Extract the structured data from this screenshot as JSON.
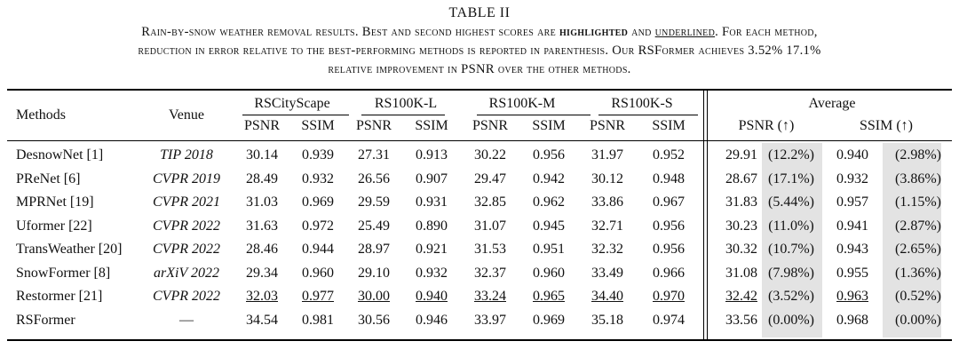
{
  "caption": {
    "title": "TABLE II",
    "line1_a": "Rain-by-snow weather removal results. Best and second highest scores are",
    "line1_highlight": "highlighted",
    "line1_and": "and",
    "line1_underlined": "underlined",
    "line1_b": ". For each method,",
    "line2": "reduction in error relative to the best-performing methods is reported in parenthesis. Our",
    "line2_rsf": "RSFormer",
    "line2_b": "achieves 3.52%  17.1%",
    "line3": "relative improvement in PSNR over the other methods."
  },
  "table": {
    "header": {
      "methods": "Methods",
      "venue": "Venue",
      "groups": [
        "RSCityScape",
        "RS100K-L",
        "RS100K-M",
        "RS100K-S",
        "Average"
      ],
      "psnr": "PSNR",
      "ssim": "SSIM",
      "avg_psnr": "PSNR (↑)",
      "avg_ssim": "SSIM (↑)"
    },
    "rows": [
      {
        "method": "DesnowNet [1]",
        "venue": "TIP 2018",
        "v": [
          "30.14",
          "0.939",
          "27.31",
          "0.913",
          "30.22",
          "0.956",
          "31.97",
          "0.952"
        ],
        "avg_psnr": "29.91",
        "avg_psnr_rel": "(12.2%)",
        "avg_ssim": "0.940",
        "avg_ssim_rel": "(2.98%)"
      },
      {
        "method": "PReNet [6]",
        "venue": "CVPR 2019",
        "v": [
          "28.49",
          "0.932",
          "26.56",
          "0.907",
          "29.47",
          "0.942",
          "30.12",
          "0.948"
        ],
        "avg_psnr": "28.67",
        "avg_psnr_rel": "(17.1%)",
        "avg_ssim": "0.932",
        "avg_ssim_rel": "(3.86%)"
      },
      {
        "method": "MPRNet [19]",
        "venue": "CVPR 2021",
        "v": [
          "31.03",
          "0.969",
          "29.59",
          "0.931",
          "32.85",
          "0.962",
          "33.86",
          "0.967"
        ],
        "avg_psnr": "31.83",
        "avg_psnr_rel": "(5.44%)",
        "avg_ssim": "0.957",
        "avg_ssim_rel": "(1.15%)"
      },
      {
        "method": "Uformer [22]",
        "venue": "CVPR 2022",
        "v": [
          "31.63",
          "0.972",
          "25.49",
          "0.890",
          "31.07",
          "0.945",
          "32.71",
          "0.956"
        ],
        "avg_psnr": "30.23",
        "avg_psnr_rel": "(11.0%)",
        "avg_ssim": "0.941",
        "avg_ssim_rel": "(2.87%)"
      },
      {
        "method": "TransWeather [20]",
        "venue": "CVPR 2022",
        "v": [
          "28.46",
          "0.944",
          "28.97",
          "0.921",
          "31.53",
          "0.951",
          "32.32",
          "0.956"
        ],
        "avg_psnr": "30.32",
        "avg_psnr_rel": "(10.7%)",
        "avg_ssim": "0.943",
        "avg_ssim_rel": "(2.65%)"
      },
      {
        "method": "SnowFormer [8]",
        "venue": "arXiV 2022",
        "v": [
          "29.34",
          "0.960",
          "29.10",
          "0.932",
          "32.37",
          "0.960",
          "33.49",
          "0.966"
        ],
        "avg_psnr": "31.08",
        "avg_psnr_rel": "(7.98%)",
        "avg_ssim": "0.955",
        "avg_ssim_rel": "(1.36%)"
      },
      {
        "method": "Restormer [21]",
        "venue": "CVPR 2022",
        "v": [
          "32.03",
          "0.977",
          "30.00",
          "0.940",
          "33.24",
          "0.965",
          "34.40",
          "0.970"
        ],
        "avg_psnr": "32.42",
        "avg_psnr_rel": "(3.52%)",
        "avg_ssim": "0.963",
        "avg_ssim_rel": "(0.52%)"
      },
      {
        "method": "RSFormer",
        "venue": "—",
        "v": [
          "34.54",
          "0.981",
          "30.56",
          "0.946",
          "33.97",
          "0.969",
          "35.18",
          "0.974"
        ],
        "avg_psnr": "33.56",
        "avg_psnr_rel": "(0.00%)",
        "avg_ssim": "0.968",
        "avg_ssim_rel": "(0.00%)"
      }
    ]
  }
}
